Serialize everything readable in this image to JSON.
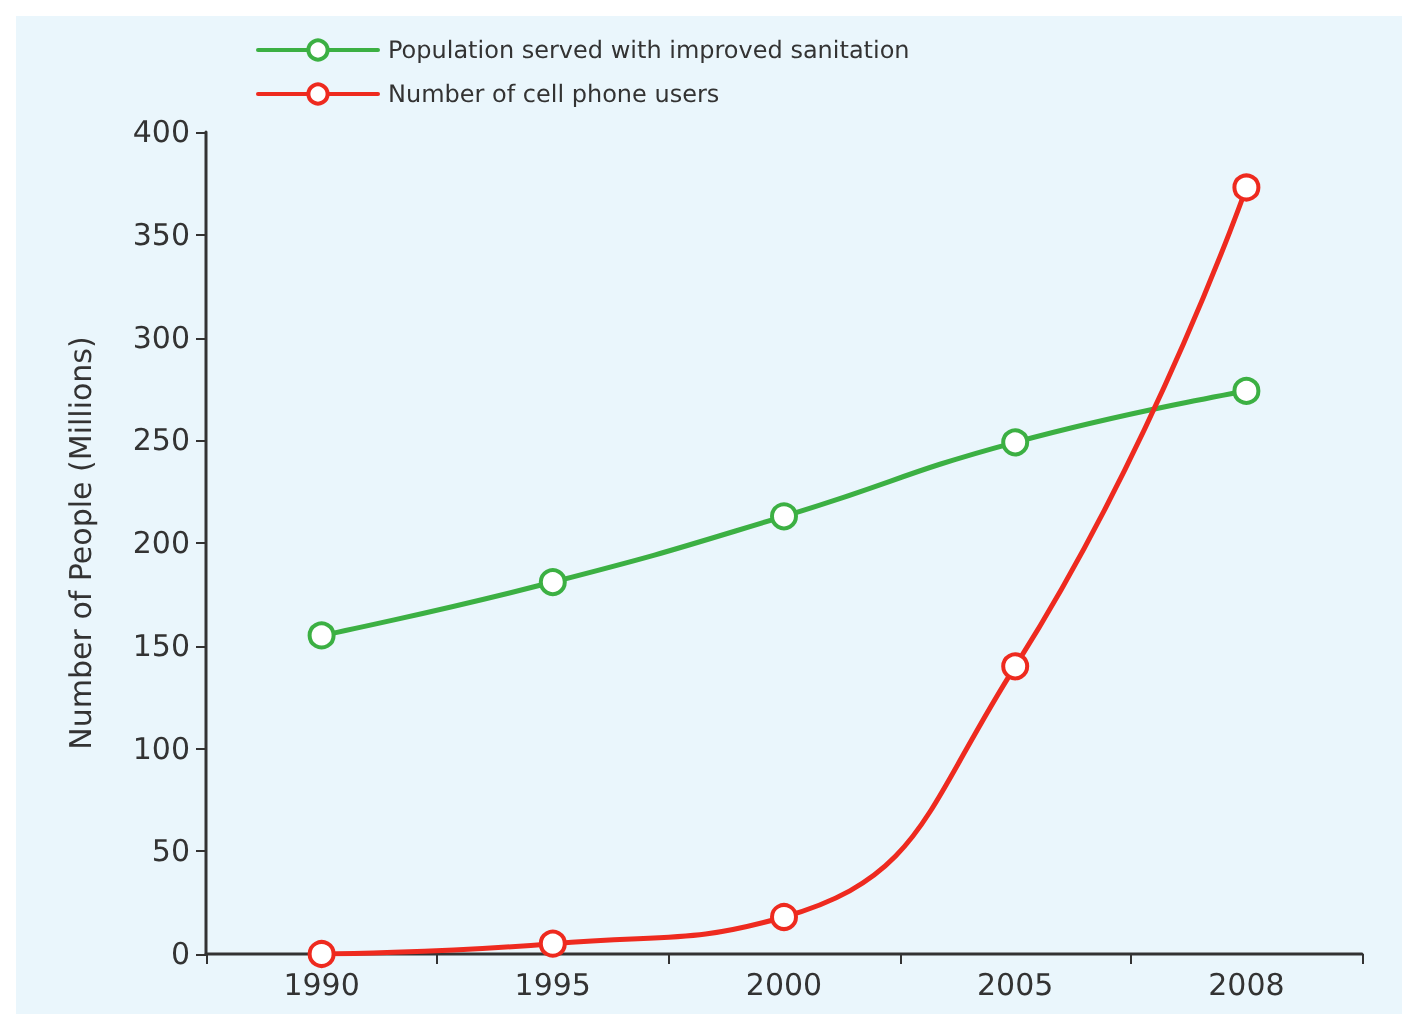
{
  "chart_data": {
    "type": "line",
    "ylabel": "Number of People (Millions)",
    "categories": [
      "1990",
      "1995",
      "2000",
      "2005",
      "2008"
    ],
    "series": [
      {
        "name": "Population served with improved sanitation",
        "color": "#3cb043",
        "values": [
          155,
          181,
          213,
          249,
          274
        ]
      },
      {
        "name": "Number of cell phone users",
        "color": "#ee2a1f",
        "values": [
          0,
          5,
          18,
          140,
          373
        ]
      }
    ],
    "ylim": [
      0,
      400
    ],
    "yticks": [
      0,
      50,
      100,
      150,
      200,
      250,
      300,
      350,
      400
    ],
    "grid": false,
    "legend": "top left",
    "marker": "circle",
    "line_style": "solid"
  }
}
